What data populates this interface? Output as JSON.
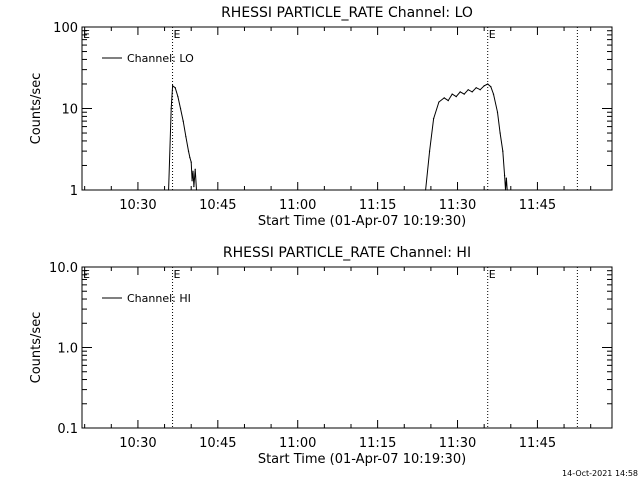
{
  "footer_timestamp": "14-Oct-2021 14:58",
  "chart_data": [
    {
      "type": "line",
      "title": "RHESSI PARTICLE_RATE Channel: LO",
      "xlabel": "Start Time (01-Apr-07 10:19:30)",
      "ylabel": "Counts/sec",
      "y_scale": "log",
      "ylim": [
        1,
        100
      ],
      "xlim": [
        "10:19:30",
        "11:59:00"
      ],
      "xticks": [
        "10:30",
        "10:45",
        "11:00",
        "11:15",
        "11:30",
        "11:45"
      ],
      "yticks": [
        "1",
        "10",
        "100"
      ],
      "legend": "top-left",
      "event_markers": [
        {
          "time": "10:36:30",
          "label": "E"
        },
        {
          "time": "11:35:40",
          "label": "E"
        },
        {
          "time": "11:52:30",
          "label": ""
        }
      ],
      "series": [
        {
          "name": "Channel: LO",
          "segments": [
            [
              [
                "10:35:45",
                1.0
              ],
              [
                "10:36:15",
                10.0
              ],
              [
                "10:36:30",
                19.0
              ],
              [
                "10:37:00",
                18.0
              ],
              [
                "10:37:30",
                14.0
              ],
              [
                "10:38:00",
                10.0
              ],
              [
                "10:38:30",
                7.0
              ],
              [
                "10:39:00",
                4.5
              ],
              [
                "10:39:30",
                3.0
              ],
              [
                "10:39:45",
                2.5
              ],
              [
                "10:40:00",
                2.2
              ],
              [
                "10:40:10",
                1.3
              ],
              [
                "10:40:20",
                1.7
              ],
              [
                "10:40:30",
                1.1
              ],
              [
                "10:40:45",
                1.8
              ],
              [
                "10:41:00",
                1.0
              ]
            ],
            [
              [
                "11:24:00",
                1.0
              ],
              [
                "11:24:45",
                3.0
              ],
              [
                "11:25:30",
                7.5
              ],
              [
                "11:26:30",
                12.0
              ],
              [
                "11:27:30",
                13.5
              ],
              [
                "11:28:15",
                12.5
              ],
              [
                "11:29:00",
                15.0
              ],
              [
                "11:29:45",
                14.0
              ],
              [
                "11:30:30",
                16.0
              ],
              [
                "11:31:15",
                15.0
              ],
              [
                "11:32:00",
                17.0
              ],
              [
                "11:32:45",
                16.0
              ],
              [
                "11:33:30",
                18.0
              ],
              [
                "11:34:15",
                17.0
              ],
              [
                "11:35:00",
                19.0
              ],
              [
                "11:35:40",
                20.0
              ],
              [
                "11:36:15",
                18.5
              ],
              [
                "11:36:45",
                15.0
              ],
              [
                "11:37:30",
                9.0
              ],
              [
                "11:38:00",
                5.0
              ],
              [
                "11:38:30",
                3.0
              ],
              [
                "11:38:50",
                1.5
              ],
              [
                "11:39:00",
                1.0
              ],
              [
                "11:39:10",
                1.4
              ],
              [
                "11:39:20",
                1.0
              ]
            ]
          ]
        }
      ]
    },
    {
      "type": "line",
      "title": "RHESSI PARTICLE_RATE Channel: HI",
      "xlabel": "Start Time (01-Apr-07 10:19:30)",
      "ylabel": "Counts/sec",
      "y_scale": "log",
      "ylim": [
        0.1,
        10
      ],
      "xlim": [
        "10:19:30",
        "11:59:00"
      ],
      "xticks": [
        "10:30",
        "10:45",
        "11:00",
        "11:15",
        "11:30",
        "11:45"
      ],
      "yticks": [
        "0.1",
        "1.0",
        "10.0"
      ],
      "legend": "top-left",
      "event_markers": [
        {
          "time": "10:36:30",
          "label": "E"
        },
        {
          "time": "11:35:40",
          "label": "E"
        },
        {
          "time": "11:52:30",
          "label": ""
        }
      ],
      "series": [
        {
          "name": "Channel: HI",
          "segments": []
        }
      ]
    }
  ]
}
